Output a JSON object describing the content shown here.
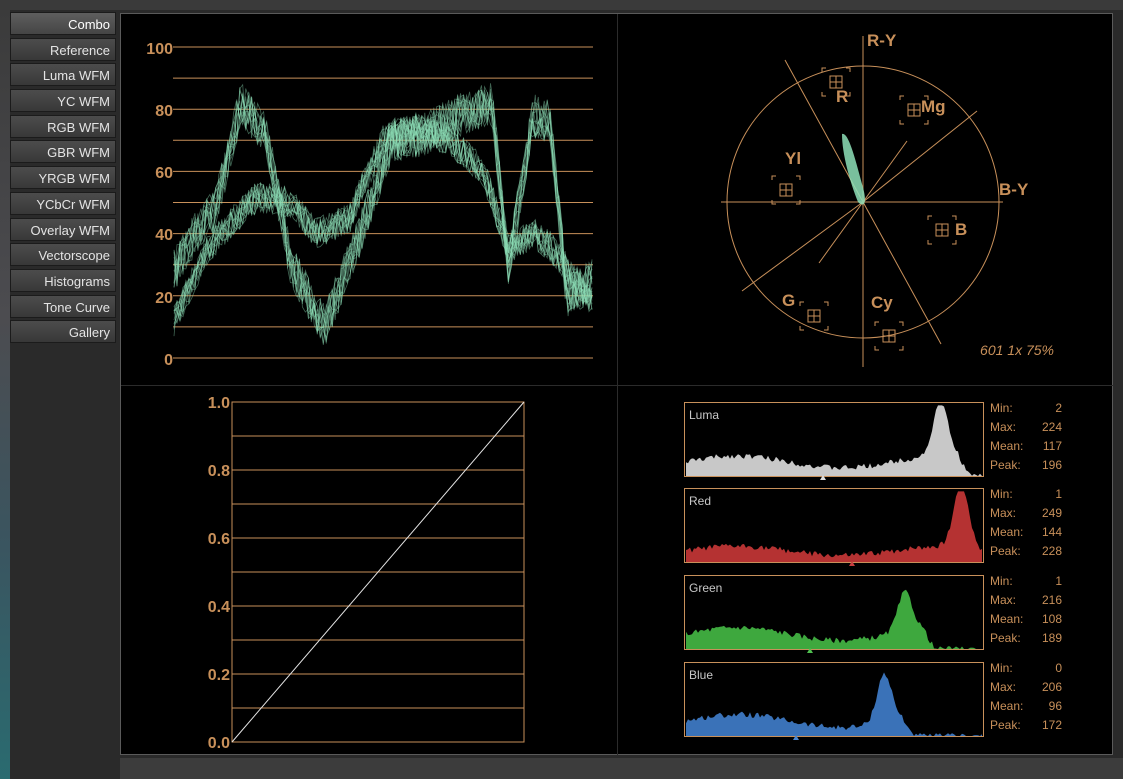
{
  "sidebar": {
    "items": [
      {
        "label": "Combo",
        "active": true
      },
      {
        "label": "Reference"
      },
      {
        "label": "Luma WFM"
      },
      {
        "label": "YC WFM"
      },
      {
        "label": "RGB WFM"
      },
      {
        "label": "GBR WFM"
      },
      {
        "label": "YRGB WFM"
      },
      {
        "label": "YCbCr WFM"
      },
      {
        "label": "Overlay WFM"
      },
      {
        "label": "Vectorscope"
      },
      {
        "label": "Histograms"
      },
      {
        "label": "Tone Curve"
      },
      {
        "label": "Gallery"
      }
    ]
  },
  "colors": {
    "scale_lines": "#c8905a",
    "trace": "#8ee0b8",
    "luma": "#c8c8c8",
    "red": "#b53232",
    "green": "#3ea83e",
    "blue": "#3a72b8"
  },
  "waveform": {
    "y_ticks": [
      "100",
      "80",
      "60",
      "40",
      "20",
      "0"
    ]
  },
  "vectorscope": {
    "axis_labels": {
      "ry": "R-Y",
      "by": "B-Y"
    },
    "targets": {
      "r": "R",
      "mg": "Mg",
      "b": "B",
      "cy": "Cy",
      "g": "G",
      "yl": "Yl"
    },
    "footer": "601 1x 75%"
  },
  "tone_curve": {
    "y_ticks": [
      "1.0",
      "0.8",
      "0.6",
      "0.4",
      "0.2",
      "0.0"
    ]
  },
  "histograms": [
    {
      "name": "Luma",
      "min": "2",
      "max": "224",
      "mean": "117",
      "peak": "196"
    },
    {
      "name": "Red",
      "min": "1",
      "max": "249",
      "mean": "144",
      "peak": "228"
    },
    {
      "name": "Green",
      "min": "1",
      "max": "216",
      "mean": "108",
      "peak": "189"
    },
    {
      "name": "Blue",
      "min": "0",
      "max": "206",
      "mean": "96",
      "peak": "172"
    }
  ],
  "stat_labels": {
    "min": "Min:",
    "max": "Max:",
    "mean": "Mean:",
    "peak": "Peak:"
  }
}
